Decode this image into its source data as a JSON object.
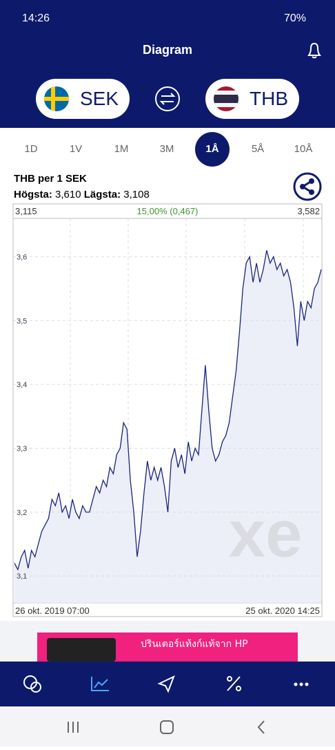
{
  "status": {
    "time": "14:26",
    "battery": "70%"
  },
  "header": {
    "title": "Diagram",
    "from": "SEK",
    "to": "THB"
  },
  "tabs": {
    "items": [
      "1D",
      "1V",
      "1M",
      "3M",
      "1Å",
      "5Å",
      "10Å"
    ],
    "selected": 4
  },
  "info": {
    "pair": "THB per 1 SEK",
    "high_label": "Högsta:",
    "high": "3,610",
    "low_label": "Lägsta:",
    "low": "3,108"
  },
  "chart": {
    "type": "line",
    "start": "3,115",
    "change": "15,00% (0,467)",
    "end": "3,582",
    "x_start": "26 okt. 2019 07:00",
    "x_end": "25 okt. 2020 14:25",
    "logo": "xe",
    "color": "#1a237e",
    "fill": "#eceff8",
    "grid": true,
    "ylim": [
      3.058,
      3.66
    ],
    "yticks": [
      {
        "value": 3.1,
        "label": "3,1"
      },
      {
        "value": 3.2,
        "label": "3,2"
      },
      {
        "value": 3.3,
        "label": "3,3"
      },
      {
        "value": 3.4,
        "label": "3,4"
      },
      {
        "value": 3.5,
        "label": "3,5"
      },
      {
        "value": 3.6,
        "label": "3,6"
      }
    ],
    "values": [
      3.12,
      3.11,
      3.13,
      3.14,
      3.112,
      3.14,
      3.13,
      3.15,
      3.17,
      3.18,
      3.19,
      3.22,
      3.21,
      3.23,
      3.2,
      3.21,
      3.19,
      3.22,
      3.2,
      3.19,
      3.21,
      3.2,
      3.2,
      3.22,
      3.24,
      3.23,
      3.25,
      3.24,
      3.27,
      3.26,
      3.29,
      3.3,
      3.34,
      3.33,
      3.25,
      3.2,
      3.13,
      3.17,
      3.23,
      3.28,
      3.25,
      3.27,
      3.25,
      3.27,
      3.24,
      3.2,
      3.28,
      3.3,
      3.27,
      3.29,
      3.26,
      3.31,
      3.28,
      3.3,
      3.29,
      3.36,
      3.43,
      3.36,
      3.3,
      3.28,
      3.29,
      3.31,
      3.32,
      3.34,
      3.38,
      3.42,
      3.48,
      3.55,
      3.59,
      3.6,
      3.56,
      3.59,
      3.56,
      3.58,
      3.61,
      3.59,
      3.6,
      3.58,
      3.59,
      3.57,
      3.58,
      3.56,
      3.52,
      3.46,
      3.53,
      3.5,
      3.53,
      3.52,
      3.55,
      3.56,
      3.58
    ]
  },
  "ad": {
    "text": "ปรินเตอร์แท้งก์แท้จาก HP"
  }
}
